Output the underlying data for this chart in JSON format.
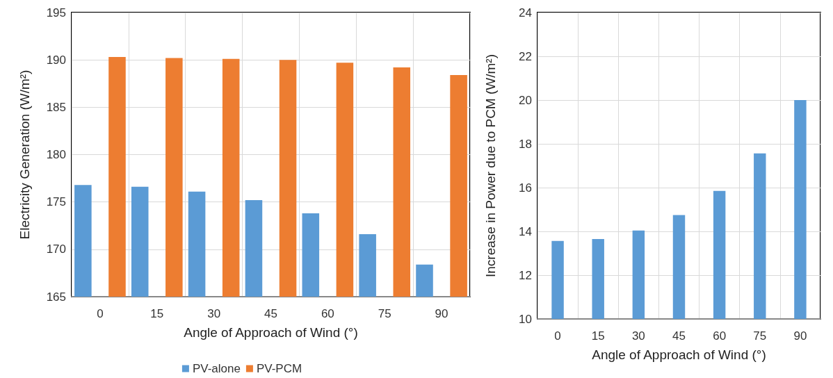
{
  "chart_data": [
    {
      "type": "bar",
      "xlabel": "Angle of Approach of Wind (°)",
      "ylabel": "Electricity Generation (W/m²)",
      "categories": [
        "0",
        "15",
        "30",
        "45",
        "60",
        "75",
        "90"
      ],
      "series": [
        {
          "name": "PV-alone",
          "color": "#5b9bd5",
          "values": [
            176.8,
            176.6,
            176.1,
            175.2,
            173.8,
            171.6,
            168.4
          ]
        },
        {
          "name": "PV-PCM",
          "color": "#ed7d31",
          "values": [
            190.3,
            190.2,
            190.1,
            190.0,
            189.7,
            189.2,
            188.4
          ]
        }
      ],
      "ylim": [
        165,
        195
      ],
      "yticks": [
        165,
        170,
        175,
        180,
        185,
        190,
        195
      ],
      "grid": true,
      "legend": "bottom"
    },
    {
      "type": "bar",
      "xlabel": "Angle of Approach of Wind (°)",
      "ylabel": "Increase in Power due to PCM (W/m²)",
      "categories": [
        "0",
        "15",
        "30",
        "45",
        "60",
        "75",
        "90"
      ],
      "series": [
        {
          "color": "#5b9bd5",
          "values": [
            13.56,
            13.65,
            14.04,
            14.75,
            15.85,
            17.56,
            20.0
          ]
        }
      ],
      "ylim": [
        10,
        24
      ],
      "yticks": [
        10,
        12,
        14,
        16,
        18,
        20,
        22,
        24
      ],
      "grid": true
    }
  ]
}
